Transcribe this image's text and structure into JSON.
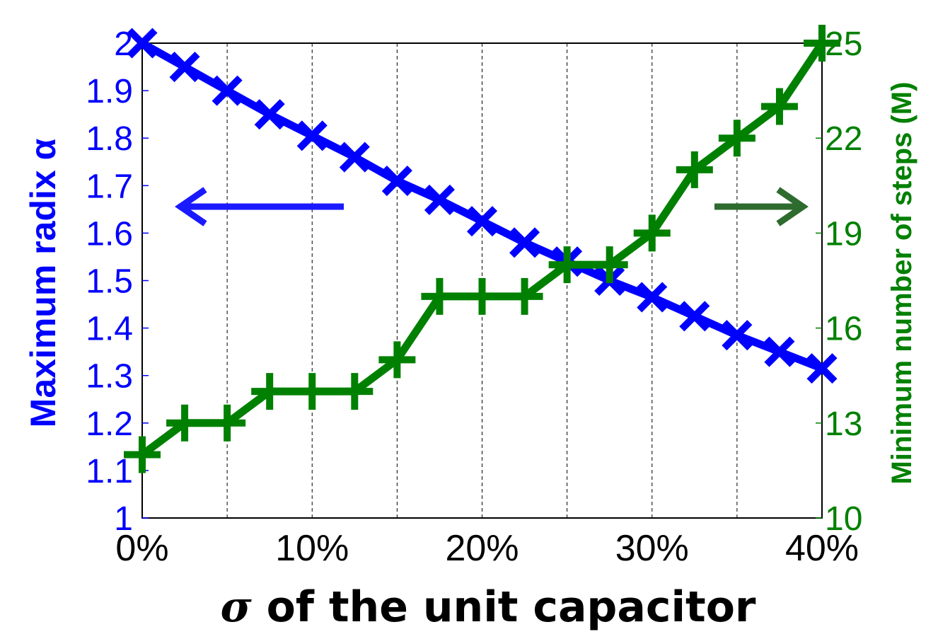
{
  "chart_data": {
    "type": "line",
    "x": [
      0,
      2.5,
      5,
      7.5,
      10,
      12.5,
      15,
      17.5,
      20,
      22.5,
      25,
      27.5,
      30,
      32.5,
      35,
      37.5,
      40
    ],
    "x_tick_labels": [
      "0%",
      "10%",
      "20%",
      "30%",
      "40%"
    ],
    "xlabel_symbol": "σ",
    "xlabel": " of the unit capacitor",
    "xlim": [
      0,
      40
    ],
    "grid": "vertical dashed lines every 5%",
    "series": [
      {
        "axis": "left",
        "color": "#0000ff",
        "marker": "x",
        "values": [
          2.0,
          1.95,
          1.9,
          1.85,
          1.805,
          1.76,
          1.71,
          1.67,
          1.625,
          1.58,
          1.54,
          1.5,
          1.465,
          1.425,
          1.385,
          1.35,
          1.315
        ]
      },
      {
        "axis": "right",
        "color": "#008000",
        "marker": "+",
        "values": [
          12,
          13,
          13,
          14,
          14,
          14,
          15,
          17,
          17,
          17,
          18,
          18,
          19,
          21,
          22,
          23,
          25
        ]
      }
    ],
    "left_axis": {
      "label": "Maximum radix α",
      "ylim": [
        1,
        2
      ],
      "tick_labels": [
        "1",
        "1.1",
        "1.2",
        "1.3",
        "1.4",
        "1.5",
        "1.6",
        "1.7",
        "1.8",
        "1.9",
        "2"
      ],
      "color": "#0000ff"
    },
    "right_axis": {
      "label": "Minimum number of steps (M)",
      "ylim": [
        10,
        25
      ],
      "tick_labels": [
        "10",
        "13",
        "16",
        "19",
        "22",
        "25"
      ],
      "color": "#008000"
    },
    "annotations": [
      {
        "type": "arrow",
        "direction": "left",
        "color": "#1a1aff"
      },
      {
        "type": "arrow",
        "direction": "right",
        "color": "#2e6b2e"
      }
    ]
  }
}
